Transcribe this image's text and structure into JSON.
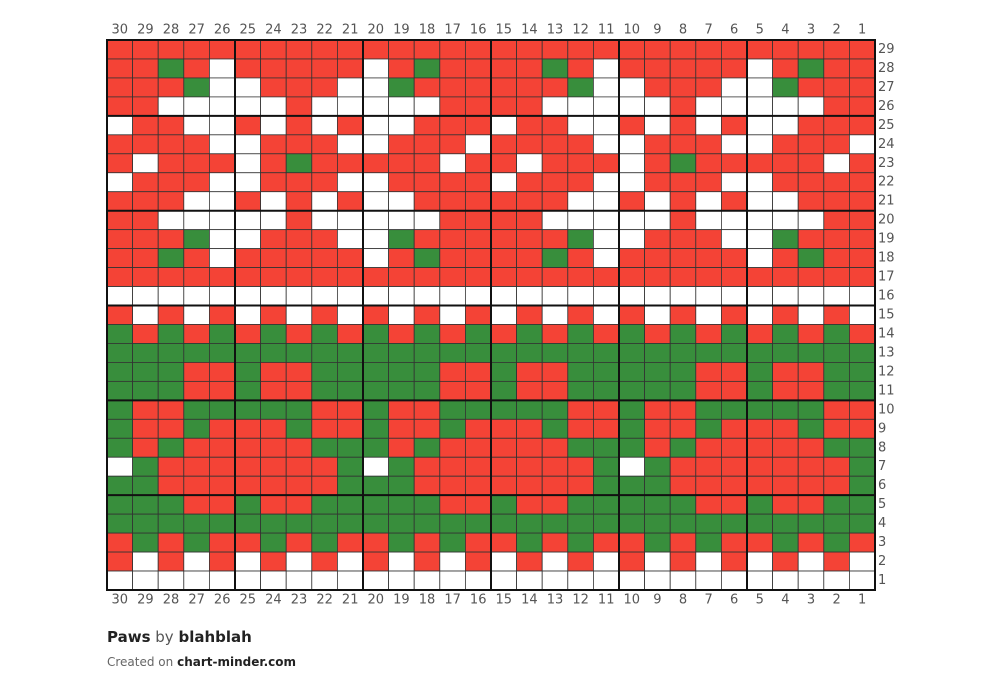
{
  "chart": {
    "columns": [
      30,
      29,
      28,
      27,
      26,
      25,
      24,
      23,
      22,
      21,
      20,
      19,
      18,
      17,
      16,
      15,
      14,
      13,
      12,
      11,
      10,
      9,
      8,
      7,
      6,
      5,
      4,
      3,
      2,
      1
    ],
    "colors": {
      "R": "#f44336",
      "G": "#388e3c",
      "W": "#ffffff"
    },
    "rows": [
      {
        "label": 29,
        "cells": "RRRRRRRRRRRRRRRRRRRRRRRRRRRRRR"
      },
      {
        "label": 28,
        "cells": "RRGRWRRRRRWRGRRRRGRWRRRRRWRGRR"
      },
      {
        "label": 27,
        "cells": "RRRGWWRRRWWGRRRRRRGWWRRRWWGRRR"
      },
      {
        "label": 26,
        "cells": "RRWWWWWRWWWWWRRRRWWWWWRWWWWWRR"
      },
      {
        "label": 25,
        "cells": "WRRWWRWRWRWWRRRWRRWWRWRWRWWRRR"
      },
      {
        "label": 24,
        "cells": "RRRRWWRRRWWRRRWRRRRWWRRRWWRRRW"
      },
      {
        "label": 23,
        "cells": "RWRRRWRGRRRRRWRRWRRRWRGRRRRRWR"
      },
      {
        "label": 22,
        "cells": "WRRRWWRRRWWRRRRWRRRWWRRRWWRRRR"
      },
      {
        "label": 21,
        "cells": "RRRWWRWRWRWWRRRRRRWWRWRWRWWRRR"
      },
      {
        "label": 20,
        "cells": "RRWWWWWRWWWWWRRRRWWWWWRWWWWWRR"
      },
      {
        "label": 19,
        "cells": "RRRGWWRRRWWGRRRRRRGWWRRRWWGRRR"
      },
      {
        "label": 18,
        "cells": "RRGRWRRRRRWRGRRRRGRWRRRRRWRGRR"
      },
      {
        "label": 17,
        "cells": "RRRRRRRRRRRRRRRRRRRRRRRRRRRRRR"
      },
      {
        "label": 16,
        "cells": "WWWWWWWWWWWWWWWWWWWWWWWWWWWWWW"
      },
      {
        "label": 15,
        "cells": "RWRWRWRWRWRWRWRWRWRWRWRWRWRWRW"
      },
      {
        "label": 14,
        "cells": "GRGRGRGRGRGRGRGRGRGRGRGRGRGRGR"
      },
      {
        "label": 13,
        "cells": "GGGGGGGGGGGGGGGGGGGGGGGGGGGGGG"
      },
      {
        "label": 12,
        "cells": "GGGRRGRRGGGGGRRGRRGGGGGRRGRRGG"
      },
      {
        "label": 11,
        "cells": "GGGRRGRRGGGGGRRGRRGGGGGRRGRRGG"
      },
      {
        "label": 10,
        "cells": "GRRGGGGGRRGRRGGGGGRRGRRGGGGGRR"
      },
      {
        "label": 9,
        "cells": "GRRGRRRGRRGRRGRRRGRRGRRGRRRGRR"
      },
      {
        "label": 8,
        "cells": "GRGRRRRRGGGRGRRRRRGGGRGRRRRRGG"
      },
      {
        "label": 7,
        "cells": "WGRRRRRRRGWGRRRRRRRGWGRRRRRRRG"
      },
      {
        "label": 6,
        "cells": "GGRRRRRRRGGGRRRRRRRGGGRRRRRRRG"
      },
      {
        "label": 5,
        "cells": "GGGRRGRRGGGGGRRGRRGGGGGRRGRRGG"
      },
      {
        "label": 4,
        "cells": "GGGGGGGGGGGGGGGGGGGGGGGGGGGGGG"
      },
      {
        "label": 3,
        "cells": "RGRGRRGRGRRGRGRRGRGRRGRGRRGRGR"
      },
      {
        "label": 2,
        "cells": "RWRWRWRWRWRWRWRWRWRWRWRWRWRWRW"
      },
      {
        "label": 1,
        "cells": "WWWWWWWWWWWWWWWWWWWWWWWWWWWWWW"
      }
    ]
  },
  "footer": {
    "title": "Paws",
    "by": "by",
    "author": "blahblah",
    "created": "Created on",
    "site": "chart-minder.com"
  }
}
